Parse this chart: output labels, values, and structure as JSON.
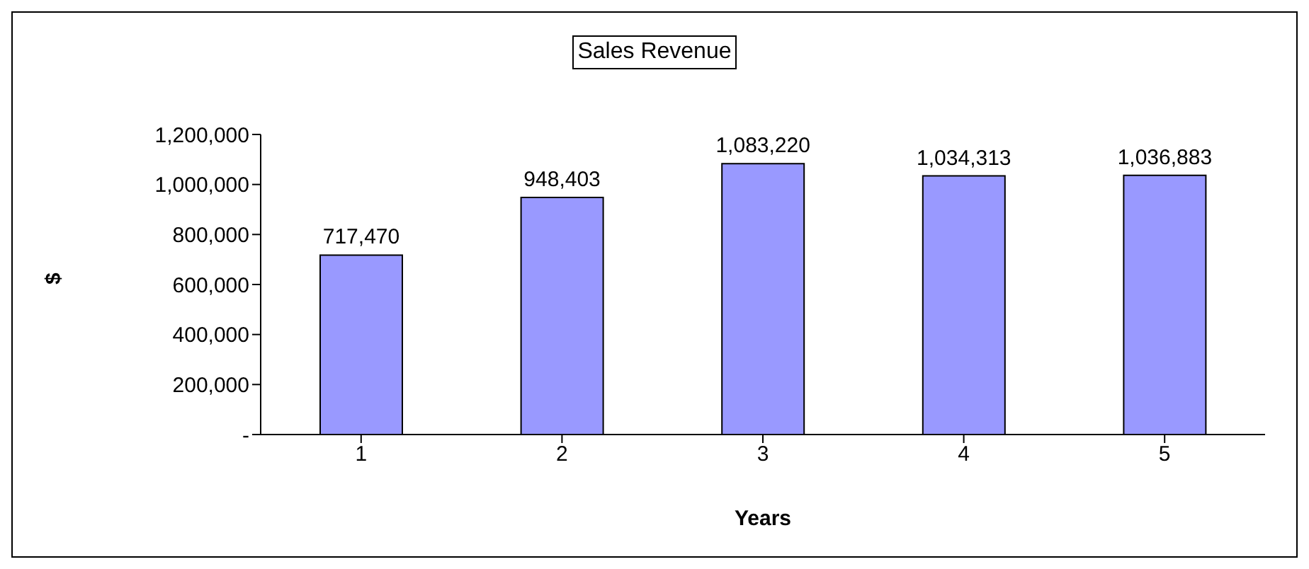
{
  "chart_data": {
    "type": "bar",
    "title": "Sales Revenue",
    "xlabel": "Years",
    "ylabel": "$",
    "categories": [
      "1",
      "2",
      "3",
      "4",
      "5"
    ],
    "values": [
      717470,
      948403,
      1083220,
      1034313,
      1036883
    ],
    "value_labels": [
      "717,470",
      "948,403",
      "1,083,220",
      "1,034,313",
      "1,036,883"
    ],
    "color": "#9999ff",
    "ylim": [
      0,
      1200000
    ],
    "yticks": [
      {
        "value": 0,
        "label": "-"
      },
      {
        "value": 200000,
        "label": "200,000"
      },
      {
        "value": 400000,
        "label": "400,000"
      },
      {
        "value": 600000,
        "label": "600,000"
      },
      {
        "value": 800000,
        "label": "800,000"
      },
      {
        "value": 1000000,
        "label": "1,000,000"
      },
      {
        "value": 1200000,
        "label": "1,200,000"
      }
    ],
    "grid": false,
    "legend": false
  }
}
